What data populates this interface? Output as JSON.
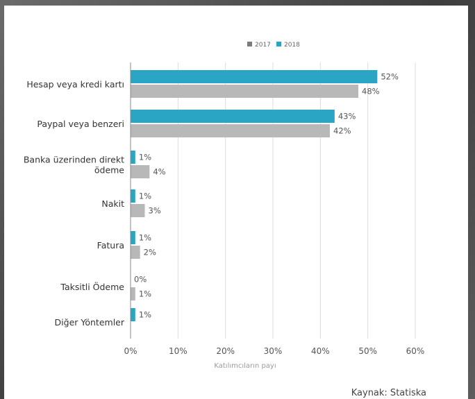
{
  "chart_data": {
    "type": "bar",
    "orientation": "horizontal",
    "categories": [
      [
        "Hesap veya kredi kartı"
      ],
      [
        "Paypal veya benzeri"
      ],
      [
        "Banka üzerinden direkt",
        "ödeme"
      ],
      [
        "Nakit"
      ],
      [
        "Fatura"
      ],
      [
        "Taksitli Ödeme"
      ],
      [
        "Diğer Yöntemler"
      ]
    ],
    "series": [
      {
        "name": "2018",
        "color": "#2aa6c4",
        "values": [
          52,
          43,
          1,
          1,
          1,
          0,
          1
        ],
        "labels": [
          "52%",
          "43%",
          "1%",
          "1%",
          "1%",
          "0%",
          "1%"
        ]
      },
      {
        "name": "2017",
        "color": "#b8b8b8",
        "values": [
          48,
          42,
          4,
          3,
          2,
          1,
          null
        ],
        "labels": [
          "48%",
          "42%",
          "4%",
          "3%",
          "2%",
          "1%",
          ""
        ]
      }
    ],
    "legend": [
      {
        "name": "2017",
        "color": "#7b7b7b"
      },
      {
        "name": "2018",
        "color": "#2aa6c4"
      }
    ],
    "xlabel": "Katılımcıların payı",
    "xlim": [
      0,
      60
    ],
    "xticks": [
      0,
      10,
      20,
      30,
      40,
      50,
      60
    ],
    "xtick_labels": [
      "0%",
      "10%",
      "20%",
      "30%",
      "40%",
      "50%",
      "60%"
    ],
    "grid": true,
    "legend_position": "top"
  },
  "source_text": "Kaynak: Statiska"
}
